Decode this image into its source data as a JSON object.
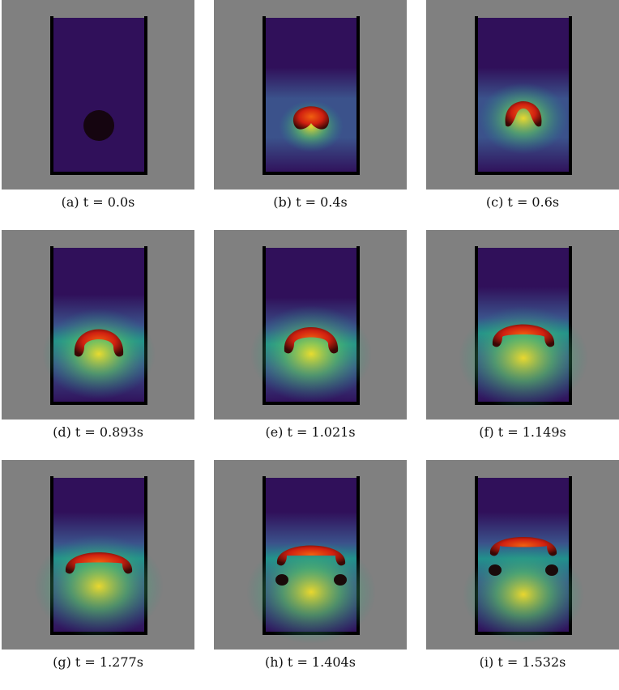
{
  "figure": {
    "panels": [
      {
        "caption": "(a) t = 0.0s",
        "time": 0.0,
        "stage": 0
      },
      {
        "caption": "(b) t = 0.4s",
        "time": 0.4,
        "stage": 1
      },
      {
        "caption": "(c) t = 0.6s",
        "time": 0.6,
        "stage": 2
      },
      {
        "caption": "(d) t = 0.893s",
        "time": 0.893,
        "stage": 3
      },
      {
        "caption": "(e) t = 1.021s",
        "time": 1.021,
        "stage": 4
      },
      {
        "caption": "(f) t = 1.149s",
        "time": 1.149,
        "stage": 5
      },
      {
        "caption": "(g) t = 1.277s",
        "time": 1.277,
        "stage": 6
      },
      {
        "caption": "(h) t = 1.404s",
        "time": 1.404,
        "stage": 7
      },
      {
        "caption": "(i) t = 1.532s",
        "time": 1.532,
        "stage": 8
      }
    ],
    "colors": {
      "background": "#808080",
      "container": "#000000",
      "fluid_dark": "#30105a",
      "fluid_mid": "#3b528b",
      "fluid_teal": "#21918c",
      "fluid_green": "#5ec962",
      "fluid_yellow": "#fde725",
      "bubble_dark": "#3a0805",
      "bubble_red": "#d02010",
      "bubble_orange": "#f06010"
    }
  }
}
